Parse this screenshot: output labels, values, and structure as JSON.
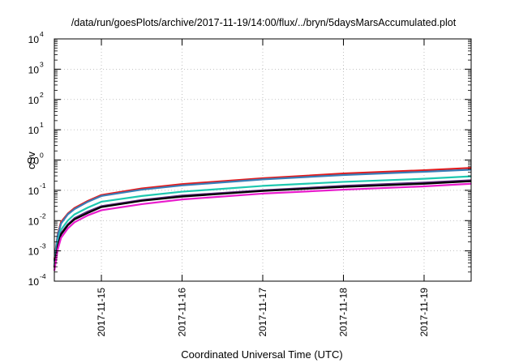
{
  "chart_data": {
    "type": "line",
    "title": "/data/run/goesPlots/archive/2017-11-19/14:00/flux/../bryn/5daysMarsAccumulated.plot",
    "xlabel": "Coordinated Universal Time (UTC)",
    "ylabel": "cSv",
    "yscale": "log",
    "ylim": [
      0.0001,
      10000
    ],
    "xlim": [
      "2017-11-14T10:00",
      "2017-11-19T14:00"
    ],
    "grid": true,
    "legend": "none",
    "x_ticks": [
      "2017-11-15",
      "2017-11-16",
      "2017-11-17",
      "2017-11-18",
      "2017-11-19"
    ],
    "y_ticks": [
      {
        "base": "10",
        "exp": "-4"
      },
      {
        "base": "10",
        "exp": "-3"
      },
      {
        "base": "10",
        "exp": "-2"
      },
      {
        "base": "10",
        "exp": "-1"
      },
      {
        "base": "10",
        "exp": "0"
      },
      {
        "base": "10",
        "exp": "1"
      },
      {
        "base": "10",
        "exp": "2"
      },
      {
        "base": "10",
        "exp": "3"
      },
      {
        "base": "10",
        "exp": "4"
      }
    ],
    "x": [
      "2017-11-14T10:00",
      "2017-11-14T11:00",
      "2017-11-14T12:00",
      "2017-11-14T14:00",
      "2017-11-14T16:00",
      "2017-11-14T20:00",
      "2017-11-15T00:00",
      "2017-11-15T12:00",
      "2017-11-16T00:00",
      "2017-11-17T00:00",
      "2017-11-18T00:00",
      "2017-11-19T00:00",
      "2017-11-19T14:00"
    ],
    "series": [
      {
        "color": "#e41a1c",
        "values": [
          0.0005,
          0.0035,
          0.009,
          0.017,
          0.026,
          0.045,
          0.07,
          0.115,
          0.16,
          0.25,
          0.36,
          0.46,
          0.55
        ]
      },
      {
        "color": "#377eb8",
        "values": [
          0.00045,
          0.0032,
          0.008,
          0.016,
          0.024,
          0.042,
          0.065,
          0.105,
          0.145,
          0.23,
          0.32,
          0.41,
          0.48
        ]
      },
      {
        "color": "#1ec8b0",
        "values": [
          0.00035,
          0.002,
          0.005,
          0.01,
          0.016,
          0.027,
          0.042,
          0.065,
          0.09,
          0.14,
          0.19,
          0.24,
          0.29
        ]
      },
      {
        "color": "#5a2a7a",
        "values": [
          0.0003,
          0.0015,
          0.0038,
          0.0075,
          0.012,
          0.02,
          0.03,
          0.048,
          0.067,
          0.1,
          0.14,
          0.18,
          0.215
        ]
      },
      {
        "color": "#000000",
        "values": [
          0.00028,
          0.0014,
          0.0035,
          0.007,
          0.011,
          0.018,
          0.028,
          0.045,
          0.062,
          0.095,
          0.13,
          0.165,
          0.2
        ]
      },
      {
        "color": "#e81ccc",
        "values": [
          0.00022,
          0.0011,
          0.0027,
          0.0055,
          0.0088,
          0.015,
          0.022,
          0.035,
          0.05,
          0.078,
          0.105,
          0.135,
          0.165
        ]
      }
    ]
  }
}
